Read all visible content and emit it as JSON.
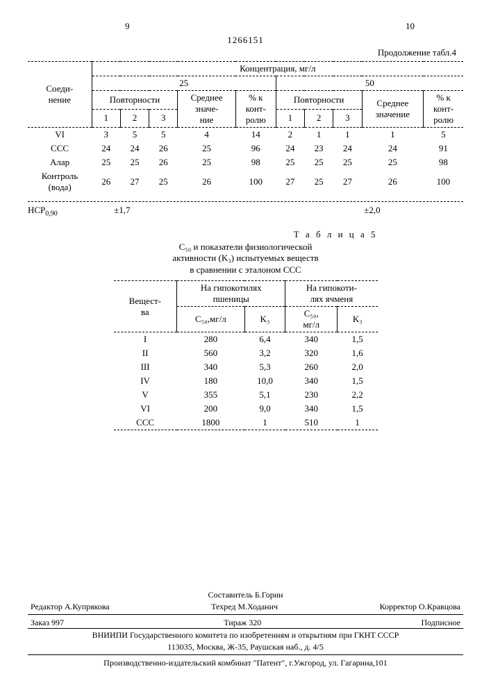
{
  "header": {
    "page_left": "9",
    "page_right": "10",
    "doc_number": "1266151",
    "continuation": "Продолжение табл.4"
  },
  "table4": {
    "col_compound": "Соеди-\nнение",
    "col_concentration": "Концентрация, мг/л",
    "conc25": "25",
    "conc50": "50",
    "repetitions": "Повторности",
    "mean": "Среднее\nзначе-\nние",
    "mean2": "Среднее\nзначение",
    "pct": "% к\nконт-\nролю",
    "c1": "1",
    "c2": "2",
    "c3": "3",
    "rows": [
      {
        "name": "VI",
        "r25": [
          "3",
          "5",
          "5"
        ],
        "m25": "4",
        "p25": "14",
        "r50": [
          "2",
          "1",
          "1"
        ],
        "m50": "1",
        "p50": "5"
      },
      {
        "name": "ССС",
        "r25": [
          "24",
          "24",
          "26"
        ],
        "m25": "25",
        "p25": "96",
        "r50": [
          "24",
          "23",
          "24"
        ],
        "m50": "24",
        "p50": "91"
      },
      {
        "name": "Алар",
        "r25": [
          "25",
          "25",
          "26"
        ],
        "m25": "25",
        "p25": "98",
        "r50": [
          "25",
          "25",
          "25"
        ],
        "m50": "25",
        "p50": "98"
      },
      {
        "name": "Контроль\n(вода)",
        "r25": [
          "26",
          "27",
          "25"
        ],
        "m25": "26",
        "p25": "100",
        "r50": [
          "27",
          "25",
          "27"
        ],
        "m50": "26",
        "p50": "100"
      }
    ],
    "hcp_label": "НСР",
    "hcp_sub": "0,90",
    "hcp_v1": "±1,7",
    "hcp_v2": "±2,0"
  },
  "table5": {
    "title": "Т а б л и ц а   5",
    "caption": "С₅₀ и показатели физиологической\nактивности (K₃) испытуемых веществ\nв сравнении с эталоном ССС",
    "col_subst": "Вещест-\nва",
    "col_wheat": "На гипокотилях\nпшеницы",
    "col_barley": "На гипокоти-\nлях ячменя",
    "c50": "С₅₀,мг/л",
    "c50b": "С₅₀,\nмг/л",
    "k3": "K₃",
    "rows": [
      {
        "s": "I",
        "wc": "280",
        "wk": "6,4",
        "bc": "340",
        "bk": "1,5"
      },
      {
        "s": "II",
        "wc": "560",
        "wk": "3,2",
        "bc": "320",
        "bk": "1,6"
      },
      {
        "s": "III",
        "wc": "340",
        "wk": "5,3",
        "bc": "260",
        "bk": "2,0"
      },
      {
        "s": "IV",
        "wc": "180",
        "wk": "10,0",
        "bc": "340",
        "bk": "1,5"
      },
      {
        "s": "V",
        "wc": "355",
        "wk": "5,1",
        "bc": "230",
        "bk": "2,2"
      },
      {
        "s": "VI",
        "wc": "200",
        "wk": "9,0",
        "bc": "340",
        "bk": "1,5"
      },
      {
        "s": "ССС",
        "wc": "1800",
        "wk": "1",
        "bc": "510",
        "bk": "1"
      }
    ]
  },
  "footer": {
    "compiler": "Составитель Б.Горин",
    "editor": "Редактор А.Купрякова",
    "techred": "Техред М.Ходанич",
    "corrector": "Корректор О.Кравцова",
    "order": "Заказ 997",
    "circ": "Тираж 320",
    "subscr": "Подписное",
    "org1": "ВНИИПИ Государственного комитета по изобретениям и открытиям при ГКНТ СССР",
    "org2": "113035, Москва, Ж-35, Раушская наб., д. 4/5",
    "prod": "Производственно-издательский комбинат \"Патент\", г.Ужгород, ул. Гагарина,101"
  }
}
